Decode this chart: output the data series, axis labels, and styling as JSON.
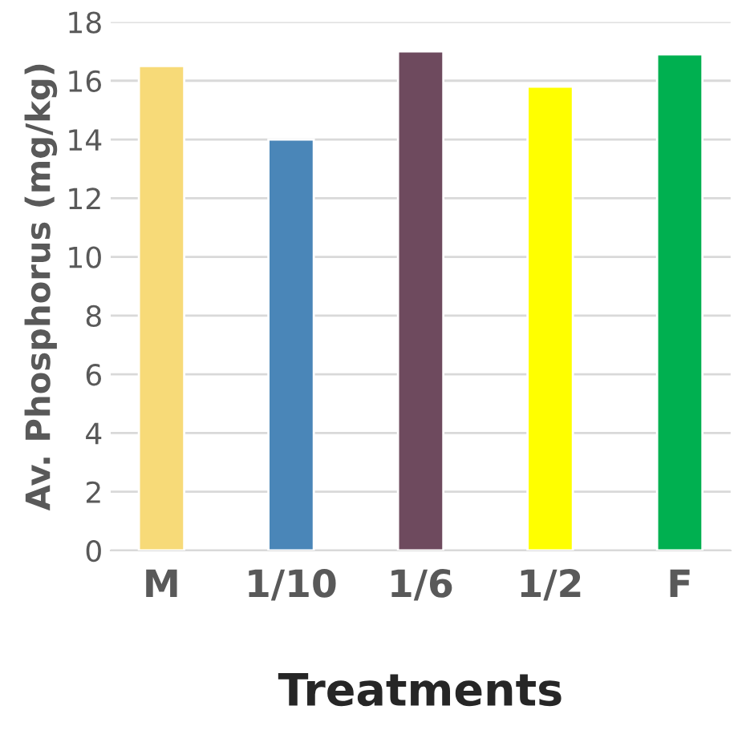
{
  "chart_data": {
    "type": "bar",
    "xlabel": "Treatments",
    "ylabel": "Av. Phosphorus (mg/kg)",
    "categories": [
      "M",
      "1/10",
      "1/6",
      "1/2",
      "F"
    ],
    "values": [
      16.5,
      14.0,
      17.0,
      15.8,
      16.9
    ],
    "colors": [
      "#f7da78",
      "#4a86b8",
      "#6e4a5e",
      "#ffff00",
      "#00b050"
    ],
    "ylim": [
      0,
      18
    ],
    "yticks": [
      0,
      2,
      4,
      6,
      8,
      10,
      12,
      14,
      16,
      18
    ],
    "grid": "y"
  }
}
